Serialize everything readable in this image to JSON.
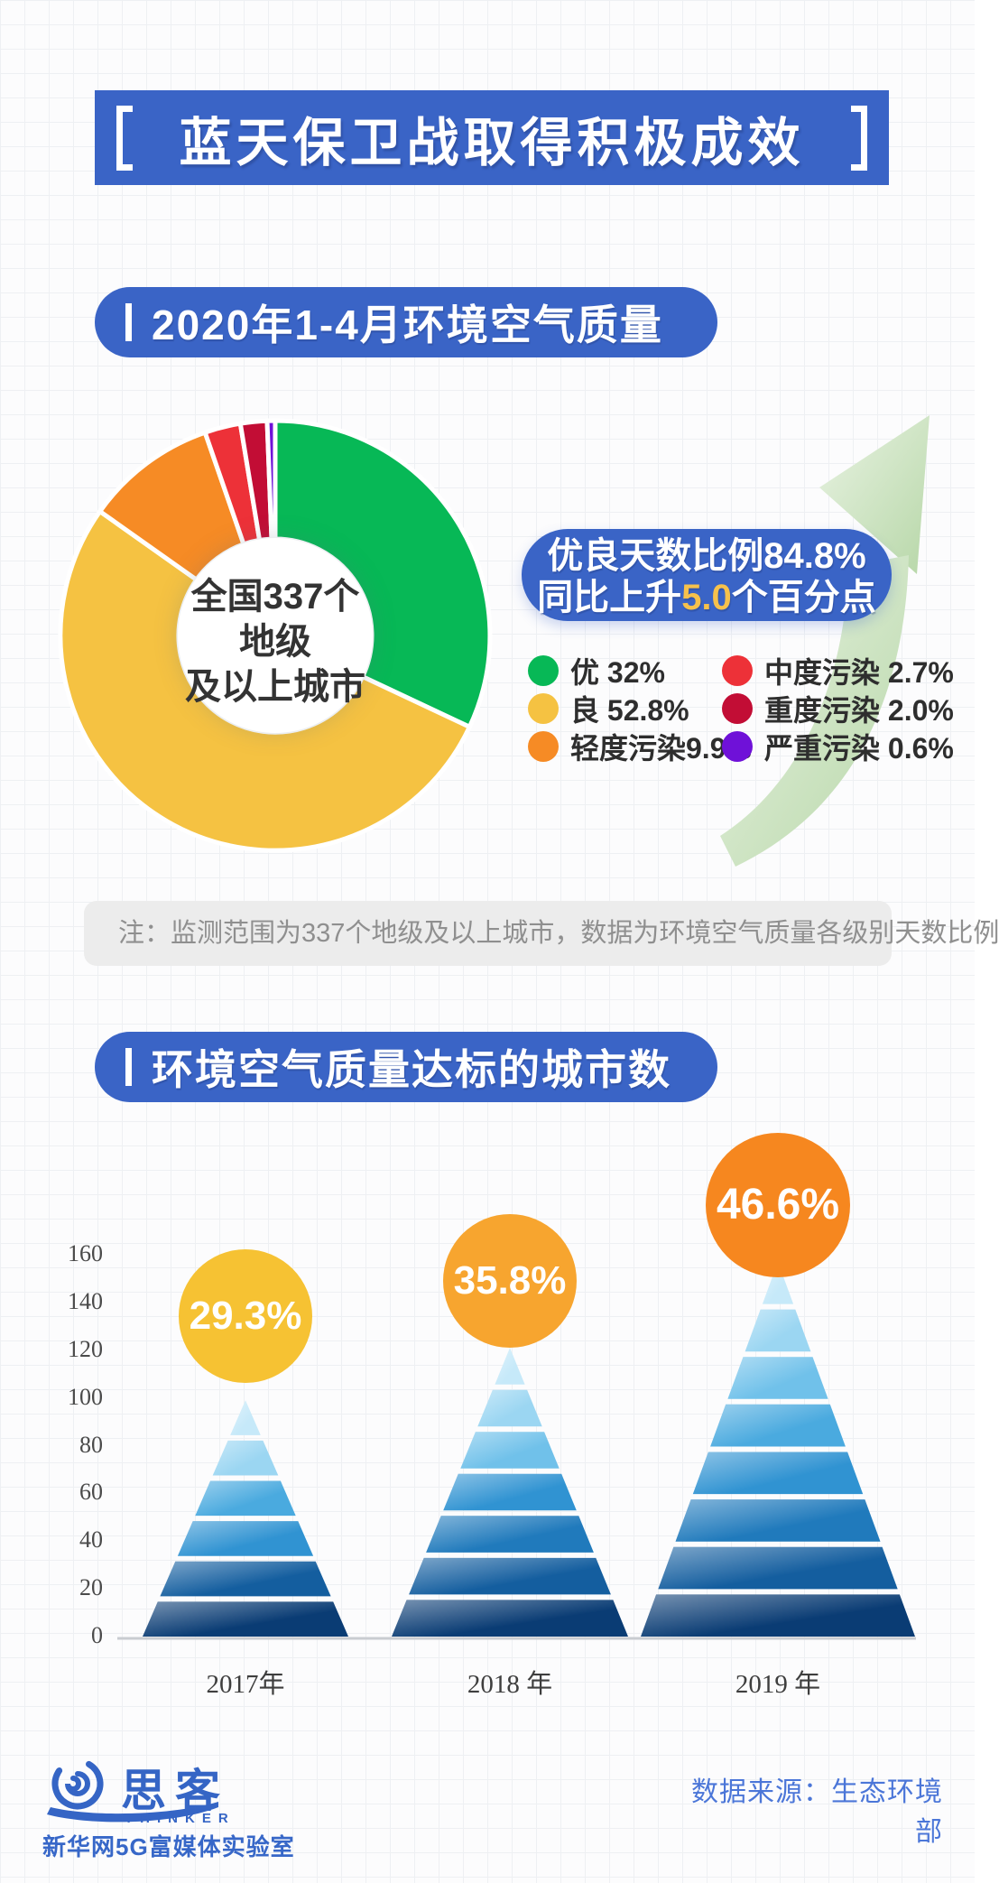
{
  "title": {
    "text": "蓝天保卫战取得积极成效"
  },
  "sections": {
    "air_quality": {
      "header": "2020年1-4月环境空气质量"
    },
    "cities": {
      "header": "环境空气质量达标的城市数"
    }
  },
  "donut": {
    "center_line1": "全国337个",
    "center_line2": "地级",
    "center_line3": "及以上城市"
  },
  "highlight": {
    "line1": "优良天数比例84.8%",
    "line2_prefix": "同比上升",
    "line2_em": "5.0",
    "line2_suffix": "个百分点",
    "em_color": "#f6c14c"
  },
  "legend": {
    "items": [
      {
        "text": "优 32%",
        "color": "#07b856"
      },
      {
        "text": "良 52.8%",
        "color": "#f5c242"
      },
      {
        "text": "轻度污染9.9%",
        "color": "#f68b25"
      },
      {
        "text": "中度污染 2.7%",
        "color": "#ed3138"
      },
      {
        "text": "重度污染 2.0%",
        "color": "#c20d35"
      },
      {
        "text": "严重污染 0.6%",
        "color": "#6f11d8"
      }
    ]
  },
  "note": "注：监测范围为337个地级及以上城市，数据为环境空气质量各级别天数比例",
  "footer": {
    "logo_cn": "思客",
    "logo_en": "THINKER",
    "logo_sub": "新华网5G富媒体实验室",
    "source": "数据来源：生态环境部"
  },
  "chart_data": [
    {
      "type": "pie",
      "subtype": "donut",
      "title": "2020年1-4月环境空气质量",
      "center_label": "全国337个地级及以上城市",
      "unit": "天数比例(%)",
      "slices": [
        {
          "label": "优",
          "value": 32,
          "color": "#07b856"
        },
        {
          "label": "良",
          "value": 52.8,
          "color": "#f5c242"
        },
        {
          "label": "轻度污染",
          "value": 9.9,
          "color": "#f68b25"
        },
        {
          "label": "中度污染",
          "value": 2.7,
          "color": "#ed3138"
        },
        {
          "label": "重度污染",
          "value": 2.0,
          "color": "#c20d35"
        },
        {
          "label": "严重污染",
          "value": 0.6,
          "color": "#6f11d8"
        }
      ],
      "annotation": "优良天数比例84.8%，同比上升5.0个百分点",
      "legend_position": "right"
    },
    {
      "type": "bar",
      "subtype": "pyramid",
      "title": "环境空气质量达标的城市数",
      "categories": [
        "2017年",
        "2018 年",
        "2019 年"
      ],
      "values": [
        99,
        121,
        157
      ],
      "point_labels": [
        "29.3%",
        "35.8%",
        "46.6%"
      ],
      "label_colors": [
        "#f6c233",
        "#f7a52f",
        "#f6871f"
      ],
      "ylim": [
        0,
        160
      ],
      "yticks": [
        0,
        20,
        40,
        60,
        80,
        100,
        120,
        140,
        160
      ],
      "grid": false,
      "layers": [
        6,
        7,
        8
      ]
    }
  ]
}
